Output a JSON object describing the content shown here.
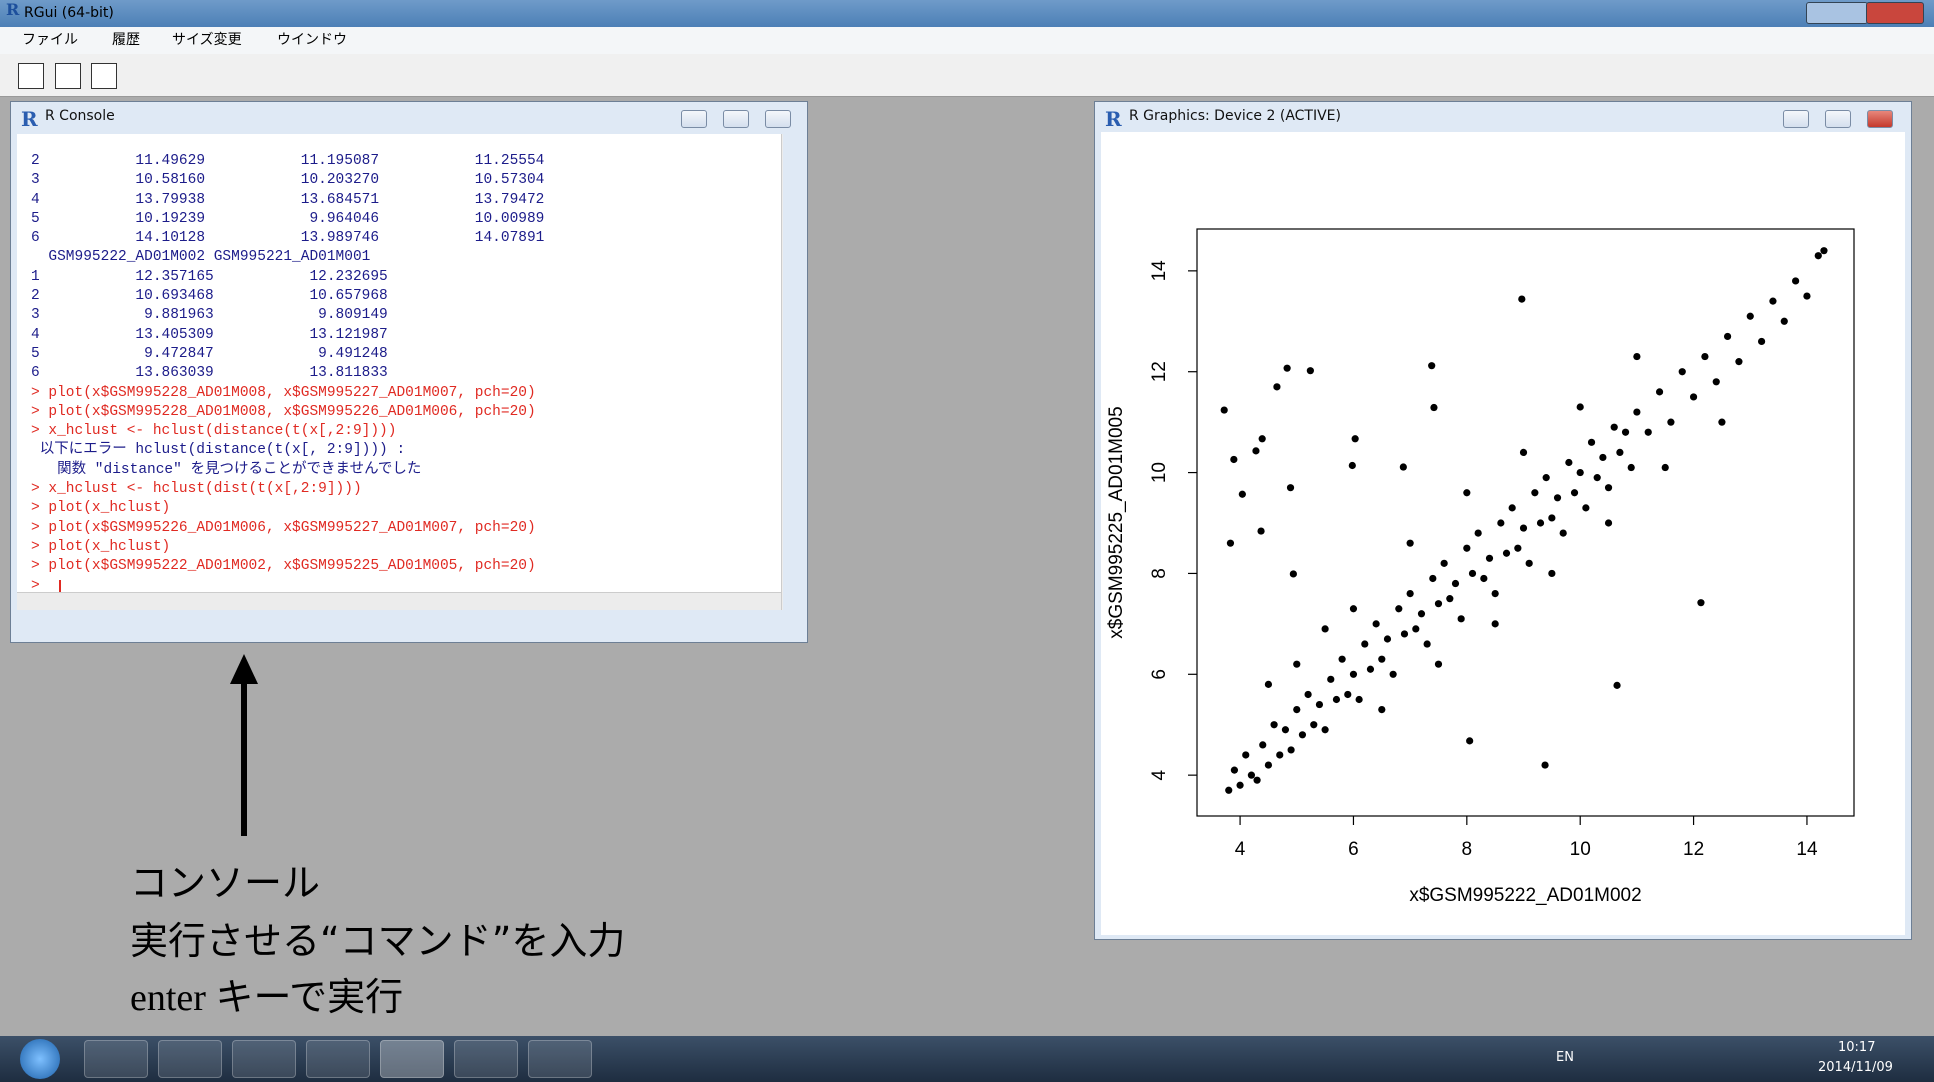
{
  "app": {
    "title": "RGui (64-bit)",
    "menu": [
      "ファイル",
      "履歴",
      "サイズ変更",
      "ウインドウ"
    ]
  },
  "console": {
    "title": "R Console",
    "lines": [
      {
        "text": "2           11.49629           11.195087           11.25554",
        "color": "#1c1c8a"
      },
      {
        "text": "3           10.58160           10.203270           10.57304",
        "color": "#1c1c8a"
      },
      {
        "text": "4           13.79938           13.684571           13.79472",
        "color": "#1c1c8a"
      },
      {
        "text": "5           10.19239            9.964046           10.00989",
        "color": "#1c1c8a"
      },
      {
        "text": "6           14.10128           13.989746           14.07891",
        "color": "#1c1c8a"
      },
      {
        "text": "  GSM995222_AD01M002 GSM995221_AD01M001",
        "color": "#1c1c8a"
      },
      {
        "text": "1           12.357165           12.232695",
        "color": "#1c1c8a"
      },
      {
        "text": "2           10.693468           10.657968",
        "color": "#1c1c8a"
      },
      {
        "text": "3            9.881963            9.809149",
        "color": "#1c1c8a"
      },
      {
        "text": "4           13.405309           13.121987",
        "color": "#1c1c8a"
      },
      {
        "text": "5            9.472847            9.491248",
        "color": "#1c1c8a"
      },
      {
        "text": "6           13.863039           13.811833",
        "color": "#1c1c8a"
      },
      {
        "text": "> plot(x$GSM995228_AD01M008, x$GSM995227_AD01M007, pch=20)",
        "color": "#e02a22"
      },
      {
        "text": "> plot(x$GSM995228_AD01M008, x$GSM995226_AD01M006, pch=20)",
        "color": "#e02a22"
      },
      {
        "text": "> x_hclust <- hclust(distance(t(x[,2:9])))",
        "color": "#e02a22"
      },
      {
        "text": " 以下にエラー hclust(distance(t(x[, 2:9]))) : ",
        "color": "#1c1c8a"
      },
      {
        "text": "   関数 \"distance\" を見つけることができませんでした",
        "color": "#1c1c8a"
      },
      {
        "text": "> x_hclust <- hclust(dist(t(x[,2:9])))",
        "color": "#e02a22"
      },
      {
        "text": "> plot(x_hclust)",
        "color": "#e02a22"
      },
      {
        "text": "> plot(x$GSM995226_AD01M006, x$GSM995227_AD01M007, pch=20)",
        "color": "#e02a22"
      },
      {
        "text": "> plot(x_hclust)",
        "color": "#e02a22"
      },
      {
        "text": "> plot(x$GSM995222_AD01M002, x$GSM995225_AD01M005, pch=20)",
        "color": "#e02a22"
      },
      {
        "text": ">",
        "color": "#e02a22"
      }
    ]
  },
  "graphics": {
    "title": "R Graphics: Device 2 (ACTIVE)"
  },
  "chart_data": {
    "type": "scatter",
    "x_label": "x$GSM995222_AD01M002",
    "y_label": "x$GSM995225_AD01M005",
    "color": "#000000",
    "xlim": [
      3.24,
      14.83
    ],
    "ylim": [
      3.19,
      14.83
    ],
    "xticks": [
      4,
      6,
      8,
      10,
      12,
      14
    ],
    "yticks": [
      4,
      6,
      8,
      10,
      12,
      14
    ],
    "x": [
      3.8,
      3.9,
      4.0,
      4.1,
      4.2,
      4.3,
      4.4,
      4.5,
      4.6,
      4.7,
      4.8,
      4.9,
      5.0,
      5.1,
      5.2,
      5.3,
      5.4,
      5.5,
      5.6,
      5.7,
      5.8,
      5.9,
      6.0,
      6.1,
      6.2,
      6.3,
      6.4,
      6.5,
      6.6,
      6.7,
      6.8,
      6.9,
      7.0,
      7.1,
      7.2,
      7.3,
      7.4,
      7.5,
      7.6,
      7.7,
      7.8,
      7.9,
      8.0,
      8.1,
      8.2,
      8.3,
      8.4,
      8.5,
      8.6,
      8.7,
      8.8,
      8.9,
      9.0,
      9.1,
      9.2,
      9.3,
      9.4,
      9.5,
      9.6,
      9.7,
      9.8,
      9.9,
      10.0,
      10.1,
      10.2,
      10.3,
      10.4,
      10.5,
      10.6,
      10.7,
      10.8,
      10.9,
      11.0,
      11.2,
      11.4,
      11.6,
      11.8,
      12.0,
      12.2,
      12.4,
      12.6,
      12.8,
      13.0,
      13.2,
      13.4,
      13.6,
      13.8,
      14.0,
      14.2,
      14.3,
      5.0,
      6.0,
      7.0,
      8.0,
      9.0,
      10.0,
      11.0,
      6.5,
      7.5,
      8.5,
      9.5,
      10.5,
      11.5,
      12.5,
      4.5,
      5.5,
      3.72,
      4.83,
      5.24,
      4.65,
      7.38,
      8.97,
      4.39,
      3.89,
      4.28,
      4.89,
      4.04,
      5.98,
      6.88,
      3.83,
      4.37,
      4.94,
      9.38,
      8.05,
      12.13,
      10.65,
      7.42,
      6.03
    ],
    "y": [
      3.7,
      4.1,
      3.8,
      4.4,
      4.0,
      3.9,
      4.6,
      4.2,
      5.0,
      4.4,
      4.9,
      4.5,
      5.3,
      4.8,
      5.6,
      5.0,
      5.4,
      4.9,
      5.9,
      5.5,
      6.3,
      5.6,
      6.0,
      5.5,
      6.6,
      6.1,
      7.0,
      6.3,
      6.7,
      6.0,
      7.3,
      6.8,
      7.6,
      6.9,
      7.2,
      6.6,
      7.9,
      7.4,
      8.2,
      7.5,
      7.8,
      7.1,
      8.5,
      8.0,
      8.8,
      7.9,
      8.3,
      7.6,
      9.0,
      8.4,
      9.3,
      8.5,
      8.9,
      8.2,
      9.6,
      9.0,
      9.9,
      9.1,
      9.5,
      8.8,
      10.2,
      9.6,
      10.0,
      9.3,
      10.6,
      9.9,
      10.3,
      9.7,
      10.9,
      10.4,
      10.8,
      10.1,
      11.2,
      10.8,
      11.6,
      11.0,
      12.0,
      11.5,
      12.3,
      11.8,
      12.7,
      12.2,
      13.1,
      12.6,
      13.4,
      13.0,
      13.8,
      13.5,
      14.3,
      14.4,
      6.2,
      7.3,
      8.6,
      9.6,
      10.4,
      11.3,
      12.3,
      5.3,
      6.2,
      7.0,
      8.0,
      9.0,
      10.1,
      11.0,
      5.8,
      6.9,
      11.24,
      12.07,
      12.02,
      11.7,
      12.12,
      13.44,
      10.67,
      10.26,
      10.43,
      9.7,
      9.57,
      10.14,
      10.11,
      8.6,
      8.84,
      7.99,
      4.2,
      4.68,
      7.42,
      5.78,
      11.29,
      10.67
    ]
  },
  "annotation": {
    "lines": [
      "コンソール",
      "実行させる“コマンド”を入力",
      "enter キーで実行"
    ]
  },
  "taskbar": {
    "language": "EN",
    "time": "10:17",
    "date": "2014/11/09"
  }
}
